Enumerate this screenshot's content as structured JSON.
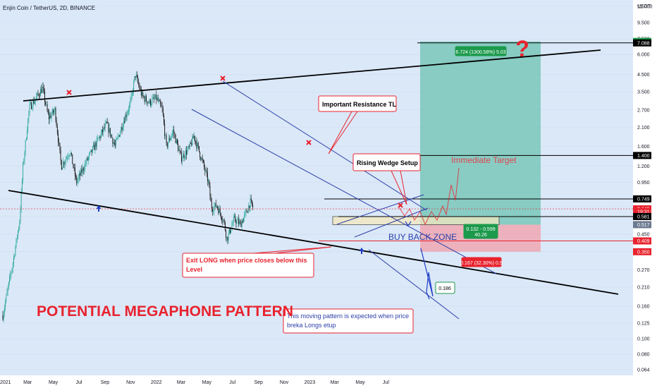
{
  "chart_title": "Enjin Coin / TetherUS, 2D, BINANCE",
  "currency": "USDT",
  "colors": {
    "background": "#dbe8f8",
    "candle_up": "#26a69a",
    "candle_down": "#111111",
    "trendline": "#000000",
    "channel": "#2b3fa8",
    "annotation_red": "#e8232e",
    "profit_zone": "#6cc3b2",
    "loss_zone": "#f0a3ac",
    "buy_zone": "#f3e7be",
    "arrow_blue": "#1e3ec8",
    "megaphone_text": "#e8232e",
    "green_label": "#1c9a4c"
  },
  "chart_data": {
    "type": "candlestick",
    "symbol": "ENJUSDT",
    "interval": "2D",
    "exchange": "BINANCE",
    "y_scale": "log",
    "ylim": [
      0.064,
      12.0
    ],
    "y_ticks": [
      0.064,
      0.08,
      0.1,
      0.125,
      0.16,
      0.21,
      0.27,
      0.35,
      0.45,
      0.58,
      0.75,
      0.95,
      1.2,
      1.6,
      2.1,
      2.7,
      3.5,
      4.5,
      6.0,
      7.5,
      9.5,
      12.0
    ],
    "y_tick_labels": [
      "0.064",
      "0.080",
      "0.100",
      "0.125",
      "0.160",
      "0.210",
      "0.270",
      "0.350",
      "0.450",
      "0.580",
      "0.750",
      "0.950",
      "1.200",
      "1.600",
      "2.100",
      "2.700",
      "3.500",
      "4.500",
      "6.000",
      "7.500",
      "9.500",
      "12.000"
    ],
    "x_ticks": [
      "2021",
      "Mar",
      "May",
      "Jul",
      "Sep",
      "Nov",
      "2022",
      "Mar",
      "May",
      "Jul",
      "Sep",
      "Nov",
      "2023",
      "Mar",
      "May",
      "Jul"
    ],
    "price_path": [
      {
        "date": "2021-01-01",
        "price": 0.14
      },
      {
        "date": "2021-01-25",
        "price": 0.3
      },
      {
        "date": "2021-02-10",
        "price": 0.55
      },
      {
        "date": "2021-02-18",
        "price": 1.2
      },
      {
        "date": "2021-03-05",
        "price": 2.8
      },
      {
        "date": "2021-03-18",
        "price": 3.1
      },
      {
        "date": "2021-04-05",
        "price": 3.7
      },
      {
        "date": "2021-04-20",
        "price": 2.4
      },
      {
        "date": "2021-05-05",
        "price": 2.7
      },
      {
        "date": "2021-05-20",
        "price": 1.2
      },
      {
        "date": "2021-06-10",
        "price": 1.5
      },
      {
        "date": "2021-06-25",
        "price": 0.95
      },
      {
        "date": "2021-07-20",
        "price": 1.3
      },
      {
        "date": "2021-08-15",
        "price": 1.75
      },
      {
        "date": "2021-09-05",
        "price": 2.2
      },
      {
        "date": "2021-09-25",
        "price": 1.6
      },
      {
        "date": "2021-10-15",
        "price": 2.3
      },
      {
        "date": "2021-11-01",
        "price": 3.0
      },
      {
        "date": "2021-11-12",
        "price": 4.5
      },
      {
        "date": "2021-11-28",
        "price": 3.3
      },
      {
        "date": "2021-12-15",
        "price": 3.0
      },
      {
        "date": "2022-01-01",
        "price": 3.2
      },
      {
        "date": "2022-01-15",
        "price": 2.7
      },
      {
        "date": "2022-01-25",
        "price": 1.6
      },
      {
        "date": "2022-02-10",
        "price": 2.0
      },
      {
        "date": "2022-03-01",
        "price": 1.35
      },
      {
        "date": "2022-03-20",
        "price": 1.55
      },
      {
        "date": "2022-04-01",
        "price": 1.85
      },
      {
        "date": "2022-04-20",
        "price": 1.3
      },
      {
        "date": "2022-05-05",
        "price": 0.95
      },
      {
        "date": "2022-05-12",
        "price": 0.66
      },
      {
        "date": "2022-05-25",
        "price": 0.68
      },
      {
        "date": "2022-06-10",
        "price": 0.55
      },
      {
        "date": "2022-06-18",
        "price": 0.42
      },
      {
        "date": "2022-07-05",
        "price": 0.56
      },
      {
        "date": "2022-07-20",
        "price": 0.52
      },
      {
        "date": "2022-08-05",
        "price": 0.63
      },
      {
        "date": "2022-08-12",
        "price": 0.72
      },
      {
        "date": "2022-08-20",
        "price": 0.649
      }
    ],
    "price_levels": [
      {
        "label": "7.241",
        "value": 7.241,
        "color": "#1c9a4c"
      },
      {
        "label": "7.088",
        "value": 7.088,
        "color": "#000000"
      },
      {
        "label": "1.400",
        "value": 1.4,
        "color": "#000000"
      },
      {
        "label": "0.749",
        "value": 0.749,
        "color": "#000000"
      },
      {
        "label": "0.649",
        "value": 0.649,
        "color": "#e8232e"
      },
      {
        "label": "19:31:09",
        "value": 0.625,
        "color": "#e8232e"
      },
      {
        "label": "0.581",
        "value": 0.581,
        "color": "#000000"
      },
      {
        "label": "0.517",
        "value": 0.517,
        "color": "#6b7a8f"
      },
      {
        "label": "0.409",
        "value": 0.409,
        "color": "#e8232e"
      },
      {
        "label": "0.350",
        "value": 0.35,
        "color": "#e8232e"
      }
    ],
    "position_tool": {
      "entry": 0.517,
      "target": 7.241,
      "stop": 0.35,
      "profit_label": "6.724 (1300.58%) 5.03",
      "loss_label": "0.167 (32.30%) 0.9",
      "ratio_label": "0.132 - 0.599",
      "ratio_sub": "40.26",
      "projection_label": "0.186"
    },
    "annotations": {
      "important_resistance": "Important Resistance TL",
      "rising_wedge": "Rising Wedge Setup",
      "immediate_target": "Immediate Target",
      "buy_back_zone": "BUY BACK ZONE",
      "exit_long": "Exit LONG when price closes below this Level",
      "moving_pattern": "This moving pattern is expected when price breka Longs etup",
      "megaphone": "POTENTIAL MEGAPHONE PATTERN",
      "question_mark": "?"
    }
  }
}
